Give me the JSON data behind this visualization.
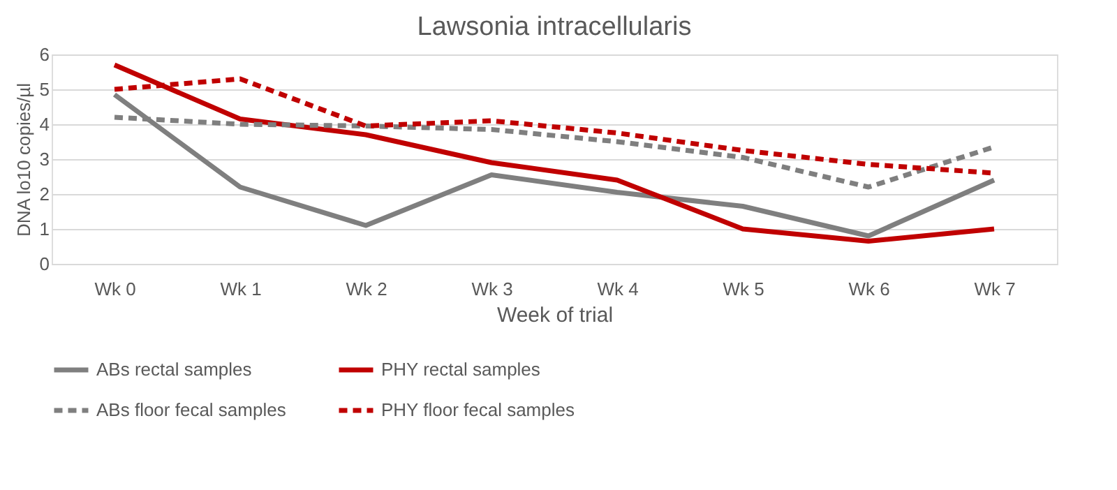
{
  "chart_data": {
    "type": "line",
    "title": "Lawsonia intracellularis",
    "xlabel": "Week of trial",
    "ylabel": "DNA lo10 copies/µl",
    "categories": [
      "Wk 0",
      "Wk 1",
      "Wk 2",
      "Wk 3",
      "Wk 4",
      "Wk 5",
      "Wk 6",
      "Wk 7"
    ],
    "ylim": [
      0,
      6
    ],
    "yticks": [
      0,
      1,
      2,
      3,
      4,
      5,
      6
    ],
    "grid": "y",
    "legend": "bottom",
    "marker": "none",
    "series": [
      {
        "name": "ABs rectal samples",
        "color": "#7f7f7f",
        "line_style": "solid",
        "values": [
          4.85,
          2.2,
          1.1,
          2.55,
          2.05,
          1.65,
          0.8,
          2.4
        ]
      },
      {
        "name": "PHY rectal samples",
        "color": "#c00000",
        "line_style": "solid",
        "values": [
          5.7,
          4.15,
          3.7,
          2.9,
          2.4,
          1.0,
          0.65,
          1.0
        ]
      },
      {
        "name": "ABs floor fecal samples",
        "color": "#7f7f7f",
        "line_style": "dashed",
        "values": [
          4.2,
          4.0,
          3.95,
          3.85,
          3.5,
          3.05,
          2.2,
          3.35
        ]
      },
      {
        "name": "PHY floor fecal samples",
        "color": "#c00000",
        "line_style": "dashed",
        "values": [
          5.0,
          5.3,
          3.95,
          4.1,
          3.75,
          3.25,
          2.85,
          2.6
        ]
      }
    ]
  }
}
